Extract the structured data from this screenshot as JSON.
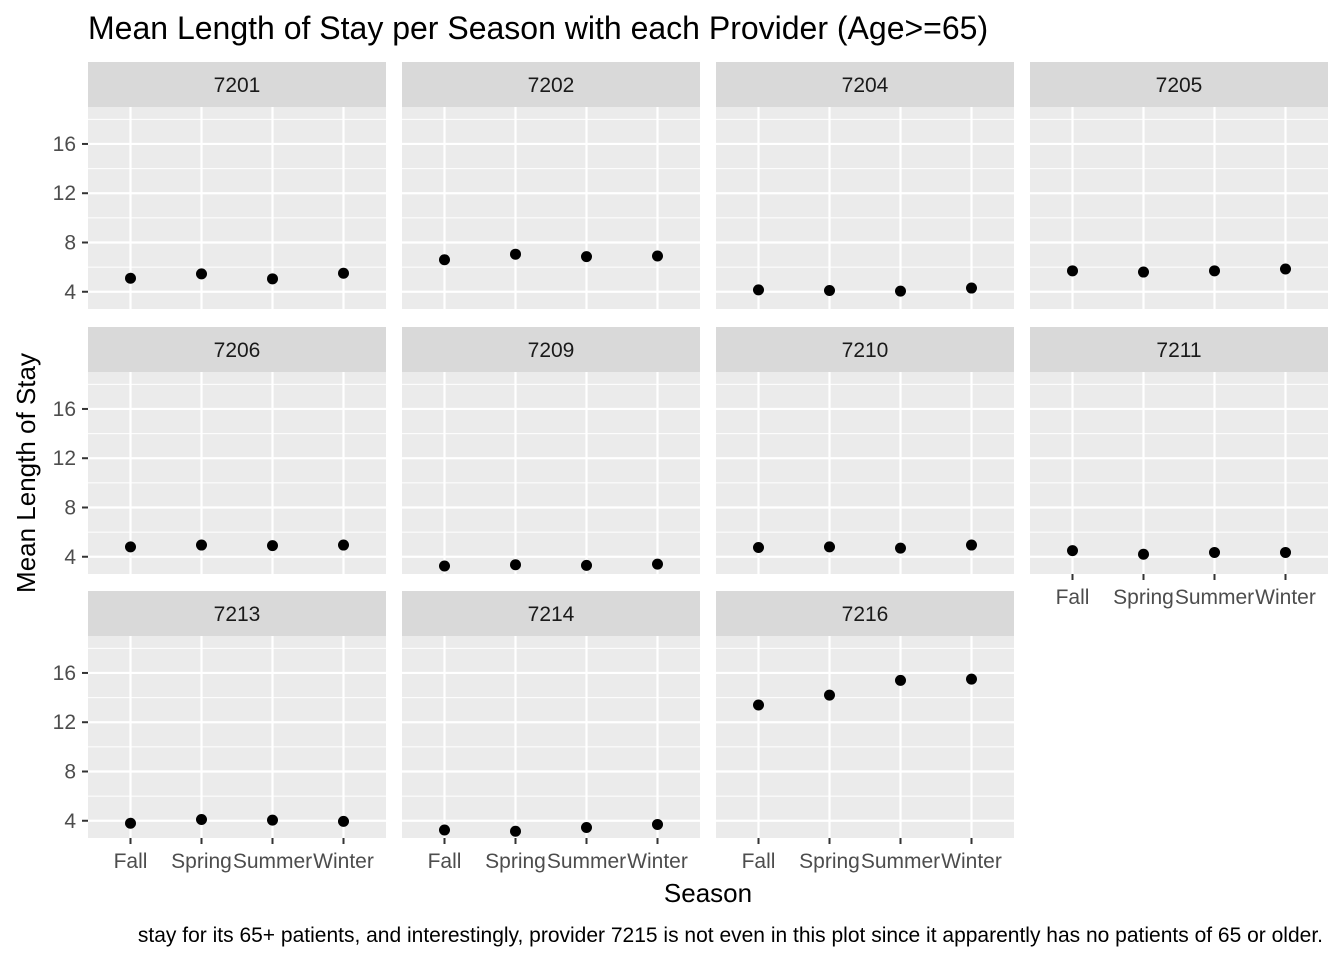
{
  "chart_data": {
    "type": "scatter",
    "title": "Mean Length of Stay per Season with each Provider (Age>=65)",
    "xlabel": "Season",
    "ylabel": "Mean Length of Stay",
    "caption": "stay for its 65+ patients, and interestingly, provider 7215 is not even in this plot since it apparently has no patients of 65 or older.",
    "categories": [
      "Fall",
      "Spring",
      "Summer",
      "Winter"
    ],
    "y_ticks": [
      4,
      8,
      12,
      16
    ],
    "ylim": [
      2.6,
      19.0
    ],
    "grid": true,
    "layout": "facet-wrap",
    "facets": [
      {
        "label": "7201",
        "values": [
          5.1,
          5.45,
          5.05,
          5.5
        ]
      },
      {
        "label": "7202",
        "values": [
          6.6,
          7.05,
          6.85,
          6.9
        ]
      },
      {
        "label": "7204",
        "values": [
          4.15,
          4.1,
          4.05,
          4.3
        ]
      },
      {
        "label": "7205",
        "values": [
          5.7,
          5.6,
          5.7,
          5.85
        ]
      },
      {
        "label": "7206",
        "values": [
          4.8,
          4.95,
          4.9,
          4.95
        ]
      },
      {
        "label": "7209",
        "values": [
          3.25,
          3.35,
          3.3,
          3.4
        ]
      },
      {
        "label": "7210",
        "values": [
          4.75,
          4.8,
          4.7,
          4.95
        ]
      },
      {
        "label": "7211",
        "values": [
          4.5,
          4.2,
          4.35,
          4.35
        ]
      },
      {
        "label": "7213",
        "values": [
          3.8,
          4.1,
          4.05,
          3.95
        ]
      },
      {
        "label": "7214",
        "values": [
          3.25,
          3.15,
          3.45,
          3.7
        ]
      },
      {
        "label": "7216",
        "values": [
          13.4,
          14.2,
          15.4,
          15.5
        ]
      }
    ]
  }
}
